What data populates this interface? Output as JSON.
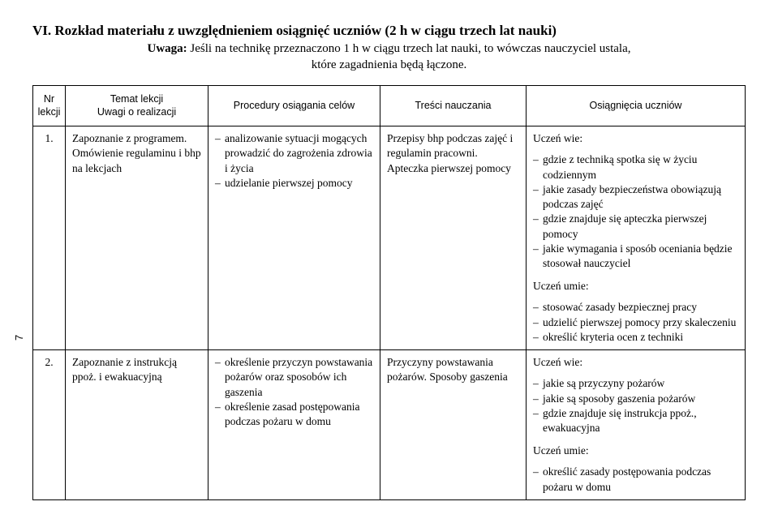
{
  "heading": {
    "title": "VI. Rozkład materiału z uwzględnieniem osiągnięć uczniów (2 h w ciągu trzech lat nauki)",
    "subtitle_strong": "Uwaga:",
    "subtitle_rest": " Jeśli na technikę przeznaczono 1 h w ciągu trzech lat nauki, to wówczas nauczyciel ustala,\nktóre zagadnienia będą łączone."
  },
  "sidetab": "7",
  "columns": {
    "c1_line1": "Nr",
    "c1_line2": "lekcji",
    "c2_line1": "Temat lekcji",
    "c2_line2": "Uwagi o realizacji",
    "c3": "Procedury osiągania celów",
    "c4": "Treści nauczania",
    "c5": "Osiągnięcia uczniów"
  },
  "rows": [
    {
      "num": "1.",
      "topic": "Zapoznanie z programem. Omówienie regulaminu i bhp na lekcjach",
      "procedures": [
        "analizowanie sytuacji mogących prowadzić do zagrożenia zdrowia i życia",
        "udzielanie pierwszej pomocy"
      ],
      "content": "Przepisy bhp podczas zajęć i regulamin pracowni. Apteczka pierwszej pomocy",
      "ach_wie_label": "Uczeń wie:",
      "ach_wie": [
        "gdzie z techniką spotka się w życiu codziennym",
        "jakie zasady bezpieczeństwa obowiązują podczas zajęć",
        "gdzie znajduje się apteczka pierwszej pomocy",
        "jakie wymagania i sposób oceniania będzie stosował nauczyciel"
      ],
      "ach_umie_label": "Uczeń umie:",
      "ach_umie": [
        "stosować zasady bezpiecznej pracy",
        "udzielić pierwszej pomocy przy skaleczeniu",
        "określić kryteria ocen z techniki"
      ]
    },
    {
      "num": "2.",
      "topic": "Zapoznanie z instrukcją ppoż. i ewakuacyjną",
      "procedures": [
        "określenie przyczyn powstawania pożarów oraz sposobów ich gaszenia",
        "określenie zasad postępowania podczas pożaru w domu"
      ],
      "content": "Przyczyny powstawania pożarów. Sposoby gaszenia",
      "ach_wie_label": "Uczeń wie:",
      "ach_wie": [
        "jakie są przyczyny pożarów",
        "jakie są sposoby gaszenia pożarów",
        "gdzie znajduje się instrukcja ppoż., ewakuacyjna"
      ],
      "ach_umie_label": "Uczeń umie:",
      "ach_umie": [
        "określić zasady postępowania podczas pożaru w domu"
      ]
    }
  ]
}
